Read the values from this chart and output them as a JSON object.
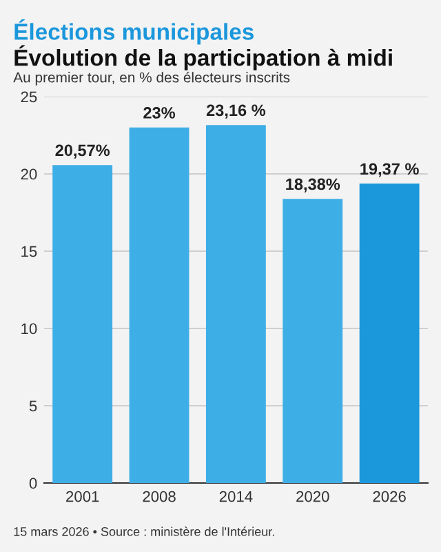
{
  "chart_data": {
    "type": "bar",
    "title": "Élections municipales",
    "subtitle": "Évolution de la participation à midi",
    "ylabel": "Au premier tour, en % des électeurs inscrits",
    "categories": [
      "2001",
      "2008",
      "2014",
      "2020",
      "2026"
    ],
    "values": [
      20.57,
      23,
      23.16,
      18.38,
      19.37
    ],
    "value_labels": [
      "20,57%",
      "23%",
      "23,16 %",
      "18,38%",
      "19,37 %"
    ],
    "colors": [
      "#3eaee6",
      "#3eaee6",
      "#3eaee6",
      "#3eaee6",
      "#1b97dc"
    ],
    "ylim": [
      0,
      25
    ],
    "yticks": [
      0,
      5,
      10,
      15,
      20,
      25
    ],
    "grid": "y",
    "annotations": [
      "15 mars 2026 • Source : ministère de l'Intérieur."
    ]
  }
}
